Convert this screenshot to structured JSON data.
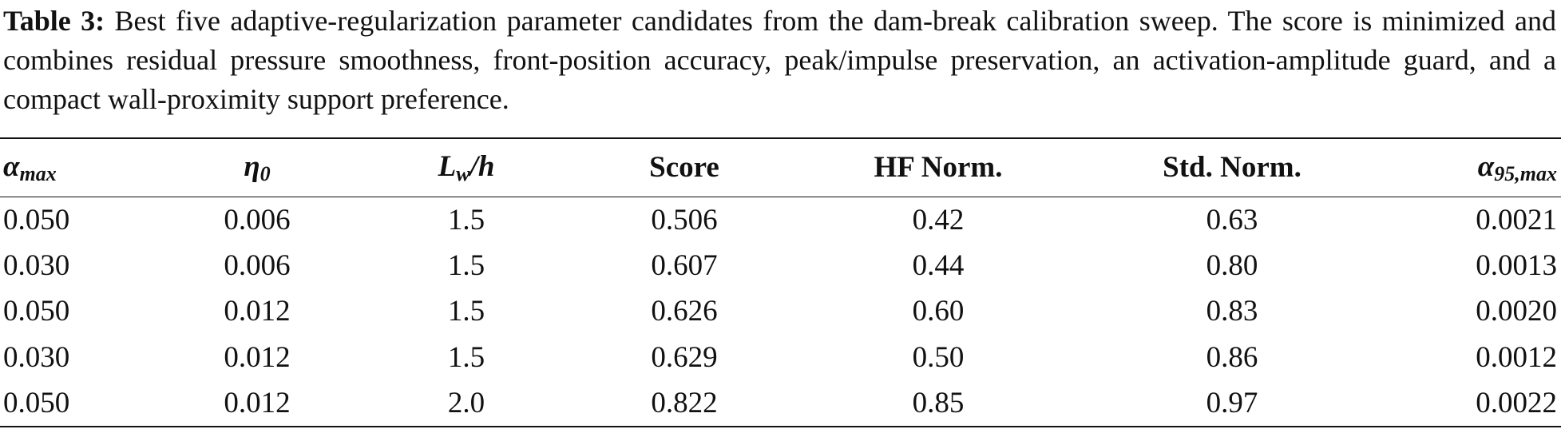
{
  "caption": {
    "label": "Table 3:",
    "text": "Best five adaptive-regularization parameter candidates from the dam-break calibration sweep. The score is minimized and combines residual pressure smoothness, front-position accuracy, peak/impulse preservation, an activation-amplitude guard, and a compact wall-proximity support preference."
  },
  "table": {
    "headers": [
      {
        "base": "α",
        "sub": "max"
      },
      {
        "base": "η",
        "sub": "0"
      },
      {
        "base": "L",
        "sub": "w",
        "rest": "/h"
      },
      "Score",
      "HF Norm.",
      "Std. Norm.",
      {
        "base": "α",
        "sub": "95,max"
      }
    ],
    "rows": [
      [
        "0.050",
        "0.006",
        "1.5",
        "0.506",
        "0.42",
        "0.63",
        "0.0021"
      ],
      [
        "0.030",
        "0.006",
        "1.5",
        "0.607",
        "0.44",
        "0.80",
        "0.0013"
      ],
      [
        "0.050",
        "0.012",
        "1.5",
        "0.626",
        "0.60",
        "0.83",
        "0.0020"
      ],
      [
        "0.030",
        "0.012",
        "1.5",
        "0.629",
        "0.50",
        "0.86",
        "0.0012"
      ],
      [
        "0.050",
        "0.012",
        "2.0",
        "0.822",
        "0.85",
        "0.97",
        "0.0022"
      ]
    ]
  }
}
